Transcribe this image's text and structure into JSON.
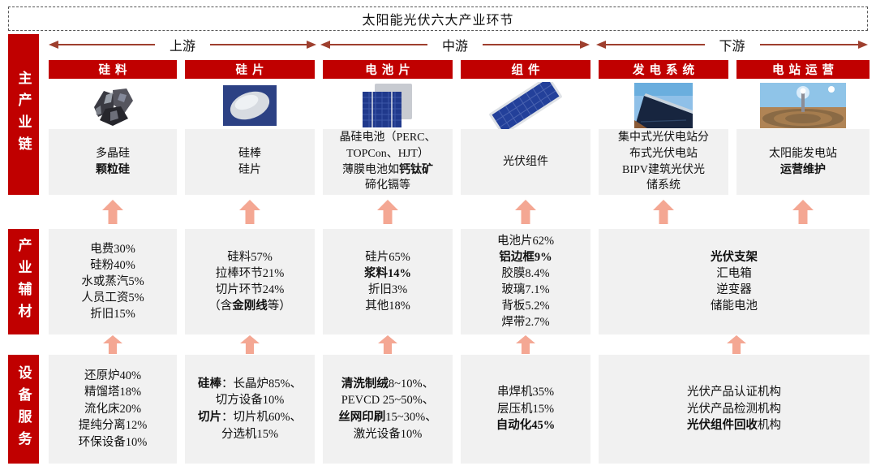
{
  "title": "太阳能光伏六大产业环节",
  "colors": {
    "accent_red": "#c00000",
    "stage_arrow_red": "#9e3f2e",
    "up_arrow_salmon": "#f4a793",
    "box_grey": "#f1f1f1"
  },
  "stages": [
    "上游",
    "中游",
    "下游"
  ],
  "sidebar": [
    "主产业链",
    "产业辅材",
    "设备服务"
  ],
  "columns": [
    {
      "header": "硅料",
      "image": "polysilicon-chunks",
      "main": [
        [
          [
            "多晶硅",
            0
          ]
        ],
        [
          [
            "颗粒硅",
            1
          ]
        ]
      ],
      "materials": [
        [
          [
            "电费30%",
            0
          ]
        ],
        [
          [
            "硅粉40%",
            0
          ]
        ],
        [
          [
            "水或蒸汽5%",
            0
          ]
        ],
        [
          [
            "人员工资5%",
            0
          ]
        ],
        [
          [
            "折旧15%",
            0
          ]
        ]
      ],
      "equipment": [
        [
          [
            "还原炉40%",
            0
          ]
        ],
        [
          [
            "精馏塔18%",
            0
          ]
        ],
        [
          [
            "流化床20%",
            0
          ]
        ],
        [
          [
            "提纯分离12%",
            0
          ]
        ],
        [
          [
            "环保设备10%",
            0
          ]
        ]
      ]
    },
    {
      "header": "硅片",
      "image": "silicon-wafer",
      "main": [
        [
          [
            "硅棒",
            0
          ]
        ],
        [
          [
            "硅片",
            0
          ]
        ]
      ],
      "materials": [
        [
          [
            "硅料57%",
            0
          ]
        ],
        [
          [
            "拉棒环节21%",
            0
          ]
        ],
        [
          [
            "切片环节24%",
            0
          ]
        ],
        [
          [
            "（含",
            0
          ],
          [
            "金刚线",
            1
          ],
          [
            "等）",
            0
          ]
        ]
      ],
      "equipment": [
        [
          [
            "硅棒",
            1
          ],
          [
            "：长晶炉85%、",
            0
          ]
        ],
        [
          [
            "切方设备10%",
            0
          ]
        ],
        [
          [
            "切片",
            1
          ],
          [
            "：切片机60%、",
            0
          ]
        ],
        [
          [
            "分选机15%",
            0
          ]
        ]
      ]
    },
    {
      "header": "电池片",
      "image": "solar-cell",
      "main": [
        [
          [
            "晶硅电池（PERC、",
            0
          ]
        ],
        [
          [
            "TOPCon、HJT）",
            0
          ]
        ],
        [
          [
            "薄膜电池如",
            0
          ],
          [
            "钙钛矿",
            1
          ]
        ],
        [
          [
            "碲化镉等",
            0
          ]
        ]
      ],
      "materials": [
        [
          [
            "硅片65%",
            0
          ]
        ],
        [
          [
            "浆料14%",
            1
          ]
        ],
        [
          [
            "折旧3%",
            0
          ]
        ],
        [
          [
            "其他18%",
            0
          ]
        ]
      ],
      "equipment": [
        [
          [
            "清洗制绒",
            1
          ],
          [
            "8~10%、",
            0
          ]
        ],
        [
          [
            "PEVCD 25~50%、",
            0
          ]
        ],
        [
          [
            "丝网印刷",
            1
          ],
          [
            "15~30%、",
            0
          ]
        ],
        [
          [
            "激光设备10%",
            0
          ]
        ]
      ]
    },
    {
      "header": "组件",
      "image": "pv-module",
      "main": [
        [
          [
            "光伏组件",
            0
          ]
        ]
      ],
      "materials": [
        [
          [
            "电池片62%",
            0
          ]
        ],
        [
          [
            "铝边框9%",
            1
          ]
        ],
        [
          [
            "胶膜8.4%",
            0
          ]
        ],
        [
          [
            "玻璃7.1%",
            0
          ]
        ],
        [
          [
            "背板5.2%",
            0
          ]
        ],
        [
          [
            "焊带2.7%",
            0
          ]
        ]
      ],
      "equipment": [
        [
          [
            "串焊机35%",
            0
          ]
        ],
        [
          [
            "层压机15%",
            0
          ]
        ],
        [
          [
            "自动化45%",
            1
          ]
        ]
      ]
    },
    {
      "header": "发电系统",
      "image": "pv-power-plant",
      "main": [
        [
          [
            "集中式光伏电站分",
            0
          ]
        ],
        [
          [
            "布式光伏电站",
            0
          ]
        ],
        [
          [
            "BIPV建筑光伏光",
            0
          ]
        ],
        [
          [
            "储系统",
            0
          ]
        ]
      ]
    },
    {
      "header": "电站运营",
      "image": "solar-tower-station",
      "main": [
        [
          [
            "太阳能发电站",
            0
          ]
        ],
        [
          [
            "运营维护",
            1
          ]
        ]
      ]
    }
  ],
  "merged": {
    "materials": [
      [
        [
          "光伏支架",
          1
        ]
      ],
      [
        [
          "汇电箱",
          0
        ]
      ],
      [
        [
          "逆变器",
          0
        ]
      ],
      [
        [
          "储能电池",
          0
        ]
      ]
    ],
    "equipment": [
      [
        [
          "光伏产品认证机构",
          0
        ]
      ],
      [
        [
          "光伏产品检测机构",
          0
        ]
      ],
      [
        [
          "光伏组件回收",
          1
        ],
        [
          "机构",
          0
        ]
      ]
    ]
  }
}
